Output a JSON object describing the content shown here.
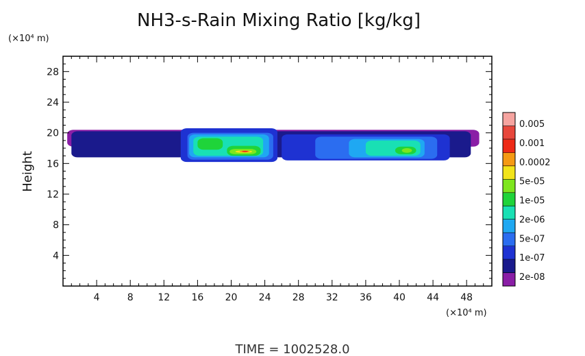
{
  "chart_data": {
    "type": "heatmap",
    "title": "NH3-s-Rain Mixing Ratio [kg/kg]",
    "ylabel": "Height",
    "y_unit_label": "(×10⁴ m)",
    "x_unit_label": "(×10⁴ m)",
    "xlim": [
      0,
      51
    ],
    "ylim": [
      0,
      30
    ],
    "x_ticks": [
      "4",
      "8",
      "12",
      "16",
      "20",
      "24",
      "28",
      "32",
      "36",
      "40",
      "44",
      "48"
    ],
    "y_ticks": [
      "4",
      "8",
      "12",
      "16",
      "20",
      "24",
      "28"
    ],
    "x_tick_values": [
      4,
      8,
      12,
      16,
      20,
      24,
      28,
      32,
      36,
      40,
      44,
      48
    ],
    "y_tick_values": [
      4,
      8,
      12,
      16,
      20,
      24,
      28
    ],
    "time_label": "TIME  =  1002528.0",
    "colorbar": {
      "colors": [
        "#8a1ea6",
        "#1a1a8c",
        "#1e32d2",
        "#2b6df0",
        "#1fa8f2",
        "#19e0b4",
        "#1fd43a",
        "#7ee61e",
        "#f2e41a",
        "#f59a14",
        "#ee2a16",
        "#e8473c",
        "#f6a4a0"
      ],
      "labels": [
        "2e-08",
        "1e-07",
        "5e-07",
        "2e-06",
        "1e-05",
        "5e-05",
        "0.0002",
        "0.001",
        "0.005"
      ]
    },
    "field_regions": [
      {
        "level": 0,
        "x": [
          0.5,
          49.5
        ],
        "y": [
          18.2,
          20.4
        ]
      },
      {
        "level": 1,
        "x": [
          1.0,
          48.5
        ],
        "y": [
          16.8,
          20.2
        ]
      },
      {
        "level": 2,
        "x": [
          14.0,
          25.5
        ],
        "y": [
          16.2,
          20.6
        ]
      },
      {
        "level": 2,
        "x": [
          26.0,
          46.0
        ],
        "y": [
          16.4,
          19.8
        ]
      },
      {
        "level": 3,
        "x": [
          14.8,
          25.0
        ],
        "y": [
          16.5,
          20.0
        ]
      },
      {
        "level": 3,
        "x": [
          30.0,
          44.5
        ],
        "y": [
          16.6,
          19.5
        ]
      },
      {
        "level": 4,
        "x": [
          15.0,
          24.5
        ],
        "y": [
          16.8,
          19.8
        ]
      },
      {
        "level": 4,
        "x": [
          34.0,
          43.0
        ],
        "y": [
          16.8,
          19.2
        ]
      },
      {
        "level": 5,
        "x": [
          15.5,
          23.8
        ],
        "y": [
          17.0,
          19.5
        ]
      },
      {
        "level": 5,
        "x": [
          36.0,
          42.5
        ],
        "y": [
          17.0,
          19.0
        ]
      },
      {
        "level": 6,
        "x": [
          16.0,
          19.0
        ],
        "y": [
          17.8,
          19.3
        ]
      },
      {
        "level": 6,
        "x": [
          19.5,
          23.5
        ],
        "y": [
          17.0,
          18.3
        ]
      },
      {
        "level": 6,
        "x": [
          39.5,
          42.0
        ],
        "y": [
          17.2,
          18.2
        ]
      },
      {
        "level": 7,
        "x": [
          19.8,
          23.0
        ],
        "y": [
          17.2,
          17.9
        ]
      },
      {
        "level": 7,
        "x": [
          40.3,
          41.5
        ],
        "y": [
          17.4,
          18.0
        ]
      },
      {
        "level": 8,
        "x": [
          20.5,
          22.5
        ],
        "y": [
          17.4,
          17.7
        ]
      },
      {
        "level": 9,
        "x": [
          21.0,
          22.2
        ],
        "y": [
          17.45,
          17.7
        ]
      },
      {
        "level": 10,
        "x": [
          21.3,
          22.0
        ],
        "y": [
          17.5,
          17.65
        ]
      }
    ]
  }
}
